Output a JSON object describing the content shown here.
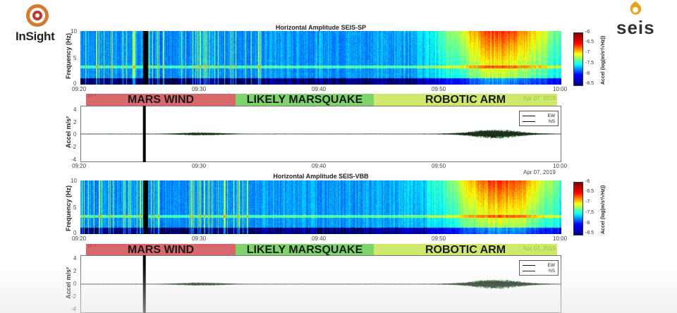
{
  "branding": {
    "left_logo_text": "InSight",
    "right_logo_text": "seis"
  },
  "chart_data": [
    {
      "type": "heatmap",
      "title": "Horizontal Amplitude SEIS-SP",
      "ylabel": "Frequency (Hz)",
      "yticks": [
        "10",
        "5",
        "0"
      ],
      "ylim": [
        0,
        10
      ],
      "xticks": [
        "09:20",
        "09:30",
        "09:40",
        "09:50",
        "10:00"
      ],
      "xlim": [
        "09:20",
        "10:00"
      ],
      "colorbar_label": "Accel (log(m/s²/√Hz))",
      "colorbar_ticks": [
        "-6",
        "-6.5",
        "-7",
        "-7.5",
        "-8",
        "-8.5"
      ],
      "clim": [
        -8.5,
        -6
      ],
      "hotspots": [
        {
          "t_min": 34,
          "intensity": 0.85,
          "f_top": 10
        },
        {
          "t_min": 49.5,
          "intensity": 0.95,
          "f_top": 10
        }
      ],
      "vertical_marker": "09:25:30"
    },
    {
      "type": "line",
      "ylabel": "Accel m/s²",
      "scale_note": "10⁻⁸",
      "yticks": [
        "4",
        "2",
        "0",
        "-2",
        "-4"
      ],
      "ylim": [
        -4,
        4
      ],
      "xticks": [
        "09:20",
        "09:30",
        "09:40",
        "09:50",
        "10:00"
      ],
      "date": "Apr 07, 2019",
      "series": [
        {
          "name": "EW",
          "color": "#111111"
        },
        {
          "name": "NS",
          "color": "#2f8a2f"
        }
      ],
      "envelope": [
        {
          "t_min": 30,
          "amp": 0.3
        },
        {
          "t_min": 34.5,
          "amp": 0.7
        },
        {
          "t_min": 49.2,
          "amp": 3.6
        },
        {
          "t_min": 51,
          "amp": 1.4
        },
        {
          "t_min": 58,
          "amp": 0.6
        }
      ]
    },
    {
      "type": "heatmap",
      "title": "Horizontal Amplitude SEIS-VBB",
      "ylabel": "Frequency (Hz)",
      "yticks": [
        "10",
        "5",
        "0"
      ],
      "ylim": [
        0,
        10
      ],
      "xticks": [
        "09:20",
        "09:30",
        "09:40",
        "09:50",
        "10:00"
      ],
      "date": "Apr 07, 2019",
      "colorbar_label": "Accel (log(m/s²/√Hz))",
      "colorbar_ticks": [
        "-6",
        "-6.5",
        "-7",
        "-7.5",
        "-8",
        "-8.5"
      ],
      "clim": [
        -8.5,
        -6
      ]
    },
    {
      "type": "line",
      "ylabel": "Accel m/s²",
      "scale_note": "10⁻⁸",
      "yticks": [
        "4",
        "2",
        "0",
        "-2",
        "-4"
      ],
      "ylim": [
        -4,
        4
      ],
      "series": [
        {
          "name": "EW",
          "color": "#111111"
        },
        {
          "name": "NS",
          "color": "#2f8a2f"
        }
      ]
    }
  ],
  "bands": [
    {
      "label": "MARS WIND",
      "color": "#d9686c"
    },
    {
      "label": "LIKELY MARSQUAKE",
      "color": "#7ed36a"
    },
    {
      "label": "ROBOTIC ARM",
      "color": "#cde86a"
    }
  ],
  "band_date": "Apr 07, 2019",
  "band_scale": "10⁻⁸"
}
